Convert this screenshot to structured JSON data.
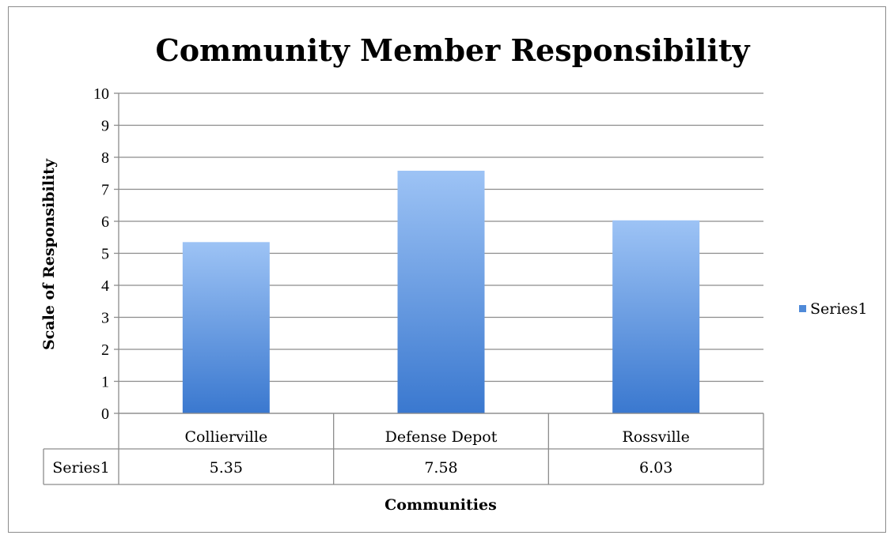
{
  "chart_data": {
    "type": "bar",
    "title": "Community Member Responsibility",
    "xlabel": "Communities",
    "ylabel": "Scale of Responsibility",
    "categories": [
      "Collierville",
      "Defense Depot",
      "Rossville"
    ],
    "series": [
      {
        "name": "Series1",
        "values": [
          5.35,
          7.58,
          6.03
        ],
        "value_labels": [
          "5.35",
          "7.58",
          "6.03"
        ]
      }
    ],
    "ylim": [
      0,
      10
    ],
    "yticks": [
      "0",
      "1",
      "2",
      "3",
      "4",
      "5",
      "6",
      "7",
      "8",
      "9",
      "10"
    ],
    "grid": true,
    "legend": "right",
    "data_table": true,
    "colors": {
      "bar_top": "#9dc3f5",
      "bar_bottom": "#3a78cf",
      "grid": "#8c8c8c",
      "legend_swatch": "#4f8ad8"
    }
  }
}
